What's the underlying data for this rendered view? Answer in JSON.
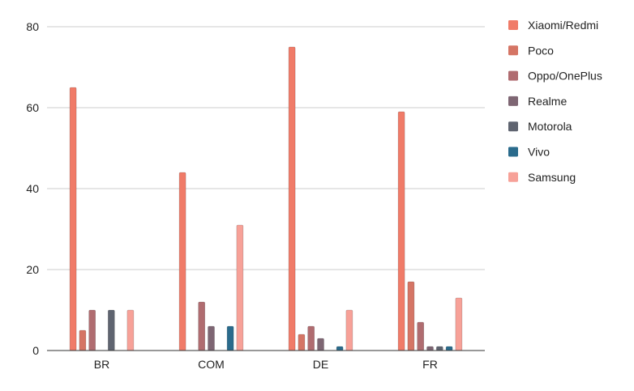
{
  "chart_data": {
    "type": "bar",
    "title": "",
    "xlabel": "",
    "ylabel": "",
    "categories": [
      "BR",
      "COM",
      "DE",
      "FR"
    ],
    "ylim": [
      0,
      80
    ],
    "yticks": [
      0,
      20,
      40,
      60,
      80
    ],
    "grid": true,
    "legend_position": "right",
    "series": [
      {
        "name": "Xiaomi/Redmi",
        "color": "#f07b68",
        "values": [
          65,
          44,
          75,
          59
        ]
      },
      {
        "name": "Poco",
        "color": "#d57565",
        "values": [
          5,
          0,
          4,
          17
        ]
      },
      {
        "name": "Oppo/OnePlus",
        "color": "#b06c70",
        "values": [
          10,
          12,
          6,
          7
        ]
      },
      {
        "name": "Realme",
        "color": "#7e6673",
        "values": [
          0,
          6,
          3,
          1
        ]
      },
      {
        "name": "Motorola",
        "color": "#5f6470",
        "values": [
          10,
          0,
          0,
          1
        ]
      },
      {
        "name": "Vivo",
        "color": "#2a6b8c",
        "values": [
          0,
          6,
          1,
          1
        ]
      },
      {
        "name": "Samsung",
        "color": "#f7a198",
        "values": [
          10,
          31,
          10,
          13
        ]
      }
    ]
  }
}
